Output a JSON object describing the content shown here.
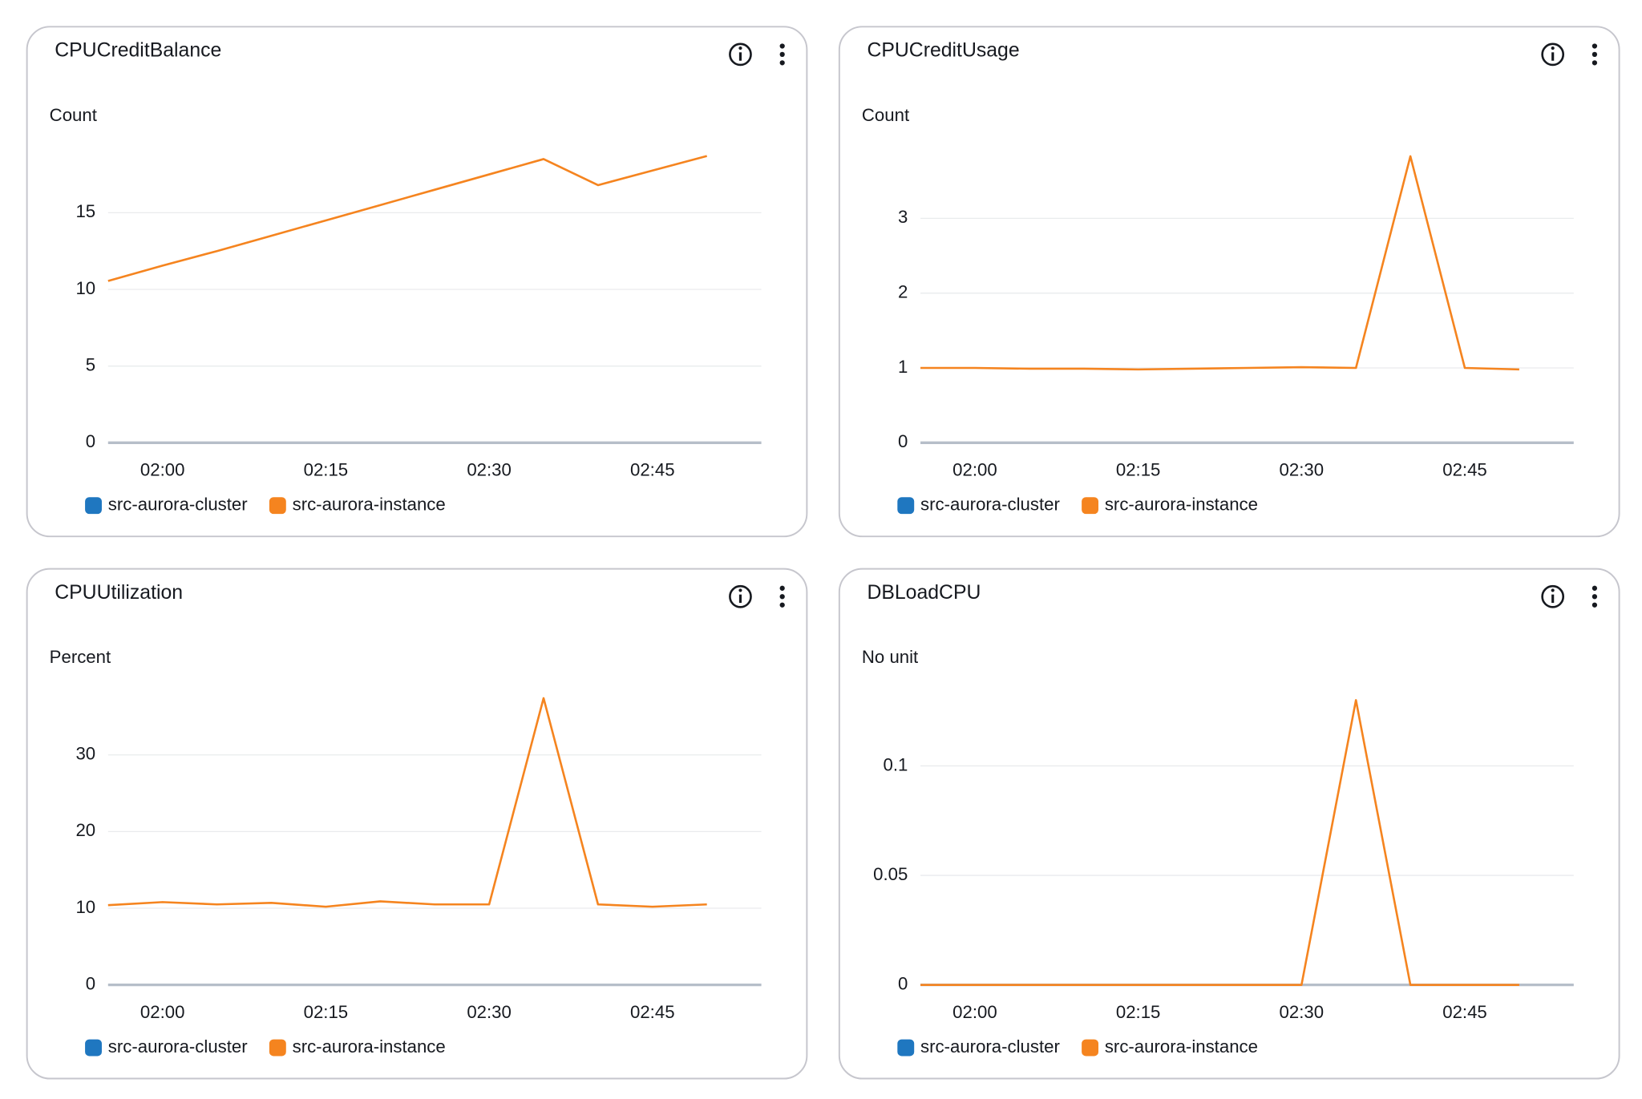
{
  "chart_data": [
    {
      "type": "line",
      "title": "CPUCreditBalance",
      "y_label": "Count",
      "categories": [
        null,
        "02:00",
        null,
        null,
        "02:15",
        null,
        null,
        "02:30",
        null,
        null,
        "02:45",
        null
      ],
      "series": [
        {
          "name": "src-aurora-cluster",
          "color": "#1f77c0",
          "values": [
            null,
            null,
            null,
            null,
            null,
            null,
            null,
            null,
            null,
            null,
            null,
            null
          ]
        },
        {
          "name": "src-aurora-instance",
          "color": "#f5841f",
          "values": [
            10.55,
            11.55,
            12.5,
            13.5,
            14.5,
            15.5,
            16.5,
            17.5,
            18.5,
            16.8,
            17.75,
            18.7
          ]
        }
      ],
      "ylim": [
        0,
        20
      ],
      "yticks": [
        0,
        5,
        10,
        15
      ],
      "grid": true
    },
    {
      "type": "line",
      "title": "CPUCreditUsage",
      "y_label": "Count",
      "categories": [
        null,
        "02:00",
        null,
        null,
        "02:15",
        null,
        null,
        "02:30",
        null,
        null,
        "02:45",
        null
      ],
      "series": [
        {
          "name": "src-aurora-cluster",
          "color": "#1f77c0",
          "values": [
            null,
            null,
            null,
            null,
            null,
            null,
            null,
            null,
            null,
            null,
            null,
            null
          ]
        },
        {
          "name": "src-aurora-instance",
          "color": "#f5841f",
          "values": [
            1.0,
            1.0,
            0.99,
            0.99,
            0.98,
            0.99,
            1.0,
            1.01,
            1.0,
            3.83,
            1.0,
            0.98
          ]
        }
      ],
      "ylim": [
        0,
        4.1
      ],
      "yticks": [
        0,
        1,
        2,
        3
      ],
      "grid": true
    },
    {
      "type": "line",
      "title": "CPUUtilization",
      "y_label": "Percent",
      "categories": [
        null,
        "02:00",
        null,
        null,
        "02:15",
        null,
        null,
        "02:30",
        null,
        null,
        "02:45",
        null
      ],
      "series": [
        {
          "name": "src-aurora-cluster",
          "color": "#1f77c0",
          "values": [
            null,
            null,
            null,
            null,
            null,
            null,
            null,
            null,
            null,
            null,
            null,
            null
          ]
        },
        {
          "name": "src-aurora-instance",
          "color": "#f5841f",
          "values": [
            10.4,
            10.8,
            10.5,
            10.7,
            10.2,
            10.9,
            10.5,
            10.5,
            37.4,
            10.5,
            10.2,
            10.5
          ]
        }
      ],
      "ylim": [
        0,
        40
      ],
      "yticks": [
        0,
        10,
        20,
        30
      ],
      "grid": true
    },
    {
      "type": "line",
      "title": "DBLoadCPU",
      "y_label": "No unit",
      "categories": [
        null,
        "02:00",
        null,
        null,
        "02:15",
        null,
        null,
        "02:30",
        null,
        null,
        "02:45",
        null
      ],
      "series": [
        {
          "name": "src-aurora-cluster",
          "color": "#1f77c0",
          "values": [
            null,
            null,
            null,
            null,
            null,
            null,
            null,
            null,
            null,
            null,
            null,
            null
          ]
        },
        {
          "name": "src-aurora-instance",
          "color": "#f5841f",
          "values": [
            0,
            0,
            0,
            0,
            0,
            0,
            0,
            0,
            0.13,
            0,
            0,
            0
          ]
        }
      ],
      "ylim": [
        0,
        0.14
      ],
      "yticks": [
        0,
        0.05,
        0.1
      ],
      "grid": true
    }
  ]
}
